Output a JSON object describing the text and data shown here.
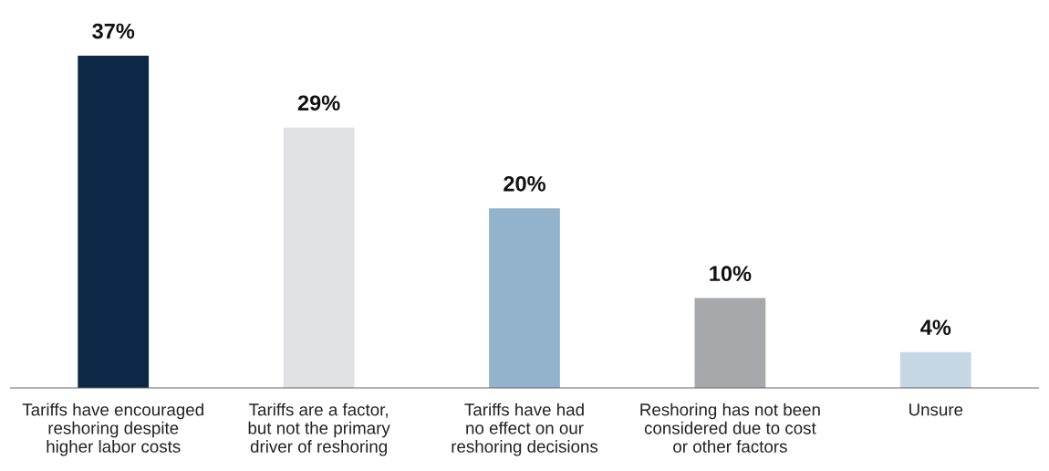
{
  "chart_data": {
    "type": "bar",
    "categories": [
      "Tariffs have encouraged\nreshoring despite\nhigher labor costs",
      "Tariffs are a factor,\nbut not the primary\ndriver of reshoring",
      "Tariffs have had\nno effect on our\nreshoring decisions",
      "Reshoring has not been\nconsidered due to cost\nor other factors",
      "Unsure"
    ],
    "values": [
      37,
      29,
      20,
      10,
      4
    ],
    "colors": [
      "#0d2846",
      "#e0e1e3",
      "#93b3cd",
      "#a7a8ab",
      "#c5d7e5"
    ],
    "relative": false,
    "data_labels": true,
    "value_labels": [
      "37%",
      "29%",
      "20%",
      "10%",
      "4%"
    ],
    "grid": false,
    "legend": false
  }
}
